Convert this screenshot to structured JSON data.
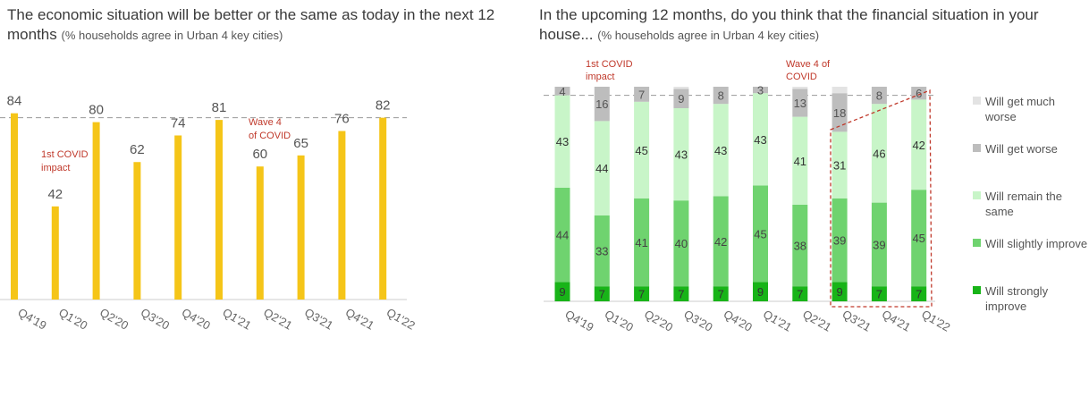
{
  "left_title": {
    "main": "The economic situation will be better or the same as today in the next 12 months",
    "sub": "(% households agree in Urban 4 key cities)"
  },
  "right_title": {
    "main": "In the upcoming 12 months, do you think that the financial situation in your house...",
    "sub": "(% households agree in Urban 4 key cities)"
  },
  "colors": {
    "left_bar": "#f5c518",
    "annotation": "#c0392b",
    "much_worse": "#e3e3e3",
    "worse": "#bdbdbd",
    "remain": "#c8f5c8",
    "slightly": "#6fd36f",
    "strongly": "#18b418"
  },
  "chart_data": [
    {
      "type": "bar",
      "categories": [
        "Q4'19",
        "Q1'20",
        "Q2'20",
        "Q3'20",
        "Q4'20",
        "Q1'21",
        "Q2'21",
        "Q3'21",
        "Q4'21",
        "Q1'22"
      ],
      "values": [
        84,
        42,
        80,
        62,
        74,
        81,
        60,
        65,
        76,
        82
      ],
      "reference_line": 82,
      "annotations": [
        {
          "text": "1st COVID impact",
          "category": "Q1'20"
        },
        {
          "text": "Wave 4 of COVID",
          "category": "Q2'21"
        }
      ]
    },
    {
      "type": "bar",
      "stacked": true,
      "categories": [
        "Q4'19",
        "Q1'20",
        "Q2'20",
        "Q3'20",
        "Q4'20",
        "Q1'21",
        "Q2'21",
        "Q3'21",
        "Q4'21",
        "Q1'22"
      ],
      "series": [
        {
          "name": "Will strongly improve",
          "values": [
            9,
            7,
            7,
            7,
            7,
            9,
            7,
            9,
            7,
            7
          ]
        },
        {
          "name": "Will slightly improve",
          "values": [
            44,
            33,
            41,
            40,
            42,
            45,
            38,
            39,
            39,
            45
          ]
        },
        {
          "name": "Will remain the same",
          "values": [
            43,
            44,
            45,
            43,
            43,
            43,
            41,
            31,
            46,
            42
          ]
        },
        {
          "name": "Will get worse",
          "values": [
            4,
            16,
            7,
            9,
            8,
            3,
            13,
            18,
            8,
            6
          ]
        },
        {
          "name": "Will get much worse",
          "values": [
            0,
            0,
            0,
            1,
            0,
            0,
            1,
            3,
            0,
            0
          ]
        }
      ],
      "reference_line": 96,
      "annotations": [
        {
          "text": "1st COVID impact",
          "category": "Q1'20"
        },
        {
          "text": "Wave 4 of COVID",
          "category": "Q2'21"
        }
      ]
    }
  ],
  "legend": [
    {
      "key": "much_worse",
      "label": "Will get much worse"
    },
    {
      "key": "worse",
      "label": "Will get worse"
    },
    {
      "key": "remain",
      "label": "Will remain the same"
    },
    {
      "key": "slightly",
      "label": "Will slightly improve"
    },
    {
      "key": "strongly",
      "label": "Will strongly improve"
    }
  ]
}
